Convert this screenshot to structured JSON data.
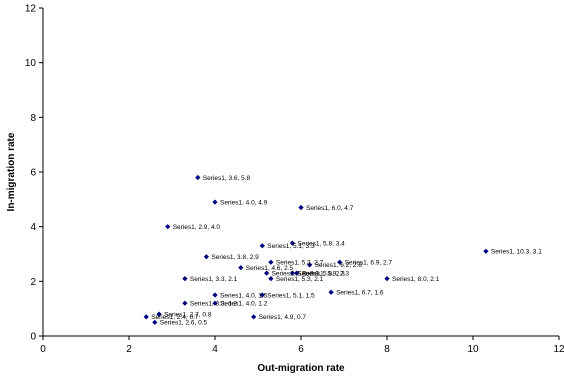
{
  "chart_data": {
    "type": "scatter",
    "title": "",
    "xlabel": "Out-migration rate",
    "ylabel": "In-migration rate",
    "xlim": [
      0,
      12
    ],
    "ylim": [
      0,
      12
    ],
    "xticks": [
      0,
      2,
      4,
      6,
      8,
      10,
      12
    ],
    "yticks": [
      0,
      2,
      4,
      6,
      8,
      10,
      12
    ],
    "grid": false,
    "legend": "none",
    "marker_color": "#000080",
    "series": [
      {
        "name": "Series1",
        "points": [
          {
            "x": 3.6,
            "y": 5.8,
            "label": "Series1, 3.6, 5.8"
          },
          {
            "x": 4.0,
            "y": 4.9,
            "label": "Series1, 4.0, 4.9"
          },
          {
            "x": 6.0,
            "y": 4.7,
            "label": "Series1, 6.0, 4.7"
          },
          {
            "x": 2.9,
            "y": 4.0,
            "label": "Series1, 2.9, 4.0"
          },
          {
            "x": 5.8,
            "y": 3.4,
            "label": "Series1, 5.8, 3.4"
          },
          {
            "x": 5.1,
            "y": 3.3,
            "label": "Series1, 5.1, 3.3"
          },
          {
            "x": 10.3,
            "y": 3.1,
            "label": "Series1, 10.3, 3.1"
          },
          {
            "x": 3.8,
            "y": 2.9,
            "label": "Series1, 3.8, 2.9"
          },
          {
            "x": 5.3,
            "y": 2.7,
            "label": "Series1, 5.3, 2.7"
          },
          {
            "x": 6.9,
            "y": 2.7,
            "label": "Series1, 6.9, 2.7"
          },
          {
            "x": 6.2,
            "y": 2.6,
            "label": "Series1, 6.2, 2.6"
          },
          {
            "x": 4.6,
            "y": 2.5,
            "label": "Series1, 4.6, 2.5"
          },
          {
            "x": 5.9,
            "y": 2.3,
            "label": "Series1, 5.9, 2.3"
          },
          {
            "x": 5.2,
            "y": 2.3,
            "label": "Series1, 5.2, 2.3"
          },
          {
            "x": 5.8,
            "y": 2.3,
            "label": "Series1, 5.8, 2.3"
          },
          {
            "x": 3.3,
            "y": 2.1,
            "label": "Series1, 3.3, 2.1"
          },
          {
            "x": 5.3,
            "y": 2.1,
            "label": "Series1, 5.3, 2.1"
          },
          {
            "x": 8.0,
            "y": 2.1,
            "label": "Series1, 8.0, 2.1"
          },
          {
            "x": 6.7,
            "y": 1.6,
            "label": "Series1, 6.7, 1.6"
          },
          {
            "x": 5.1,
            "y": 1.5,
            "label": "Series1, 5.1, 1.5"
          },
          {
            "x": 4.0,
            "y": 1.5,
            "label": "Series1, 4.0, 1.5"
          },
          {
            "x": 4.0,
            "y": 1.2,
            "label": "Series1, 4.0, 1.2"
          },
          {
            "x": 3.3,
            "y": 1.2,
            "label": "Series1, 3.3, 1.2"
          },
          {
            "x": 2.7,
            "y": 0.8,
            "label": "Series1, 2.7, 0.8"
          },
          {
            "x": 4.9,
            "y": 0.7,
            "label": "Series1, 4.9, 0.7"
          },
          {
            "x": 2.4,
            "y": 0.7,
            "label": "Series1, 2.4, 0.7"
          },
          {
            "x": 2.6,
            "y": 0.5,
            "label": "Series1, 2.6, 0.5"
          }
        ]
      }
    ]
  }
}
